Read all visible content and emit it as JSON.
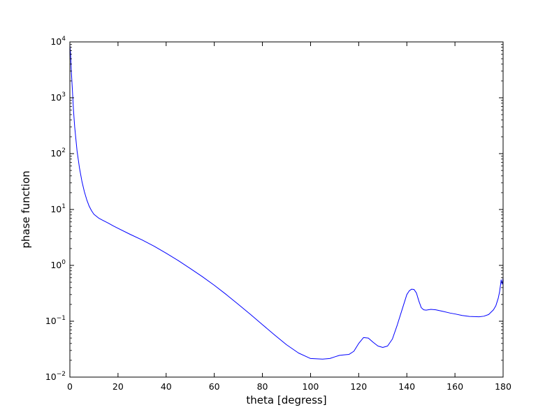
{
  "chart_data": {
    "type": "line",
    "title": "",
    "xlabel": "theta [degress]",
    "ylabel": "phase function",
    "xlim": [
      0,
      180
    ],
    "ylim_log10": [
      -2,
      4
    ],
    "x_ticks": [
      0,
      20,
      40,
      60,
      80,
      100,
      120,
      140,
      160,
      180
    ],
    "y_tick_exponents": [
      -2,
      -1,
      0,
      1,
      2,
      3,
      4
    ],
    "y_scale": "log",
    "grid": false,
    "legend": null,
    "figure_bg": "#ffffff",
    "axis_color": "#000000",
    "line_color": "#0000ff",
    "series": [
      {
        "name": "phase function",
        "x": [
          0,
          0.3,
          0.6,
          1,
          1.5,
          2,
          3,
          4,
          5,
          6,
          7,
          8,
          9,
          10,
          12,
          14,
          16,
          18,
          20,
          25,
          30,
          35,
          40,
          45,
          50,
          55,
          60,
          65,
          70,
          75,
          80,
          85,
          90,
          95,
          100,
          105,
          108,
          110,
          112,
          114,
          116,
          118,
          120,
          122,
          124,
          126,
          128,
          130,
          132,
          134,
          136,
          138,
          140,
          141,
          142,
          143,
          144,
          145,
          146,
          147,
          148,
          150,
          152,
          155,
          158,
          160,
          163,
          166,
          170,
          172,
          174,
          176,
          177,
          178,
          178.5,
          179,
          179.2,
          179.4,
          179.6,
          179.8,
          180
        ],
        "y": [
          9000,
          6000,
          3000,
          1500,
          600,
          300,
          110,
          55,
          32,
          21,
          15,
          11.5,
          9.5,
          8.2,
          7.0,
          6.3,
          5.7,
          5.1,
          4.6,
          3.6,
          2.85,
          2.2,
          1.65,
          1.22,
          0.88,
          0.63,
          0.44,
          0.3,
          0.2,
          0.133,
          0.087,
          0.057,
          0.038,
          0.027,
          0.0215,
          0.021,
          0.0215,
          0.023,
          0.0245,
          0.025,
          0.0255,
          0.029,
          0.04,
          0.051,
          0.05,
          0.042,
          0.036,
          0.034,
          0.036,
          0.048,
          0.085,
          0.16,
          0.3,
          0.35,
          0.375,
          0.37,
          0.32,
          0.23,
          0.175,
          0.16,
          0.158,
          0.163,
          0.16,
          0.15,
          0.14,
          0.135,
          0.127,
          0.122,
          0.12,
          0.123,
          0.132,
          0.16,
          0.19,
          0.26,
          0.33,
          0.47,
          0.55,
          0.5,
          0.46,
          0.52,
          0.6
        ]
      }
    ]
  }
}
